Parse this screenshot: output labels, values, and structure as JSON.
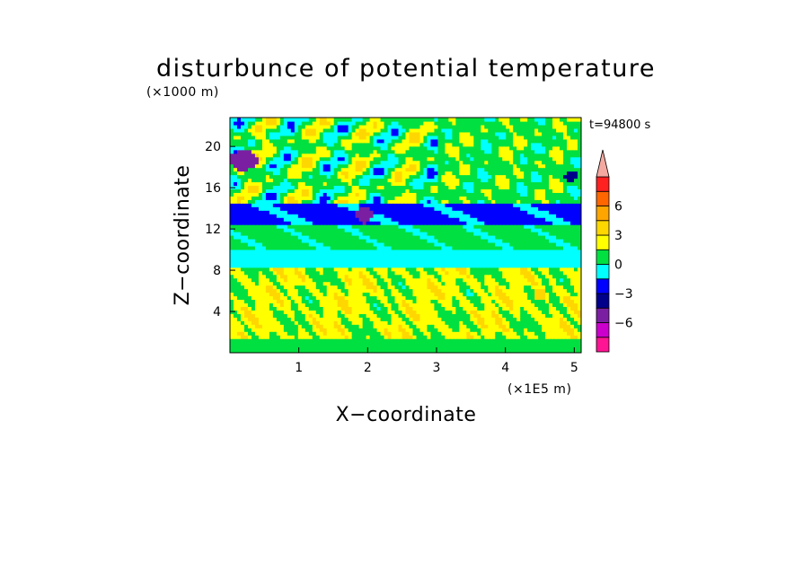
{
  "chart_data": {
    "type": "heatmap",
    "title": "disturbunce of potential temperature",
    "xlabel": "X−coordinate",
    "ylabel": "Z−coordinate",
    "x_unit": "(×1E5 m)",
    "y_unit": "(×1000 m)",
    "time_label": "t=94800 s",
    "xlim": [
      0,
      5.1
    ],
    "ylim": [
      0,
      22.8
    ],
    "x_ticks": [
      "1",
      "2",
      "3",
      "4",
      "5"
    ],
    "y_ticks": [
      "4",
      "8",
      "12",
      "16",
      "20"
    ],
    "colorbar": {
      "tick_labels": [
        "6",
        "3",
        "0",
        "−3",
        "−6"
      ],
      "levels": [
        -7.5,
        -6,
        -4.5,
        -3,
        -1.5,
        0,
        1.5,
        3,
        4.5,
        6,
        7.5
      ],
      "colors": [
        "#ff1493",
        "#cc00cc",
        "#7b1fa2",
        "#00008b",
        "#0000ff",
        "#00ffff",
        "#00e040",
        "#ffff00",
        "#ffd700",
        "#ffa500",
        "#ff6600",
        "#ff2020",
        "#f4a9a0"
      ]
    },
    "layers": [
      {
        "z_range": [
          0,
          1.5
        ],
        "dominant_value": 0.5,
        "color": "#ffff00"
      },
      {
        "z_range": [
          1.5,
          8
        ],
        "dominant_value": 2.0,
        "color": "#ffd700"
      },
      {
        "z_range": [
          8,
          10
        ],
        "dominant_value": -0.8,
        "color": "#00e040"
      },
      {
        "z_range": [
          10,
          12.5
        ],
        "dominant_value": 0.5,
        "color": "#ffff00"
      },
      {
        "z_range": [
          12.5,
          14.5
        ],
        "dominant_value": -2.0,
        "color": "#00ffff"
      },
      {
        "z_range": [
          14.5,
          22.8
        ],
        "dominant_value": 1.0,
        "color": "wave pattern"
      }
    ]
  }
}
